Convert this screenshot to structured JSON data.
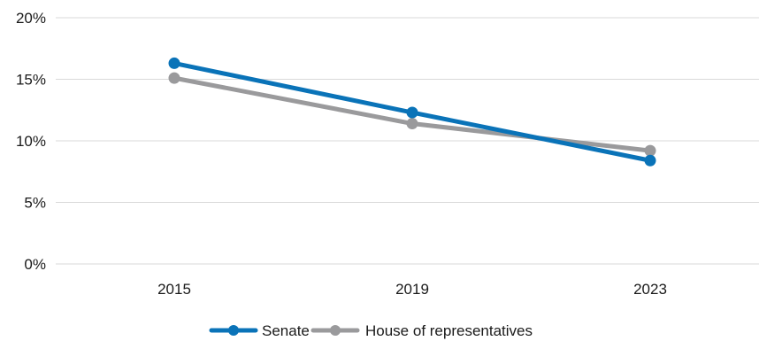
{
  "chart_data": {
    "type": "line",
    "categories": [
      "2015",
      "2019",
      "2023"
    ],
    "ylim": [
      0,
      20
    ],
    "yticks": [
      0,
      5,
      10,
      15,
      20
    ],
    "ytick_labels": [
      "0%",
      "5%",
      "10%",
      "15%",
      "20%"
    ],
    "grid": true,
    "legend_placement": "bottom-center",
    "series": [
      {
        "name": "Senate",
        "values": [
          16.3,
          12.3,
          8.4
        ],
        "color": "#0a73b8"
      },
      {
        "name": "House of representatives",
        "values": [
          15.1,
          11.4,
          9.2
        ],
        "color": "#9a9a9c"
      }
    ]
  }
}
